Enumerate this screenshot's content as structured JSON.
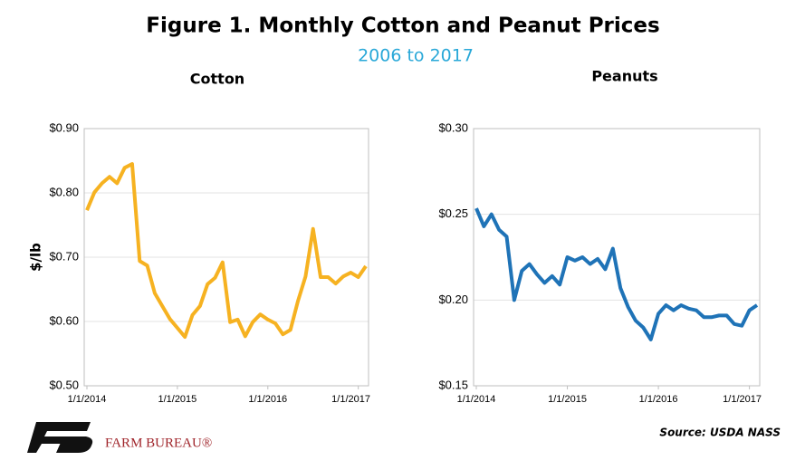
{
  "title": "Figure 1. Monthly Cotton and Peanut Prices",
  "subtitle": "2006 to 2017",
  "source": "Source: USDA NASS",
  "logo_text": "FARM BUREAU®",
  "chart_data": [
    {
      "type": "line",
      "title": "Cotton",
      "y_label": "$/lb",
      "color": "#f6b221",
      "grid": true,
      "categories": [
        "1/1/2014",
        null,
        null,
        null,
        null,
        null,
        null,
        null,
        null,
        null,
        null,
        null,
        "1/1/2015",
        null,
        null,
        null,
        null,
        null,
        null,
        null,
        null,
        null,
        null,
        null,
        "1/1/2016",
        null,
        null,
        null,
        null,
        null,
        null,
        null,
        null,
        null,
        null,
        null,
        "1/1/2017",
        null
      ],
      "values": [
        0.773,
        0.801,
        0.815,
        0.825,
        0.815,
        0.839,
        0.845,
        0.694,
        0.687,
        0.644,
        0.624,
        0.604,
        0.59,
        0.576,
        0.61,
        0.624,
        0.658,
        0.668,
        0.692,
        0.599,
        0.603,
        0.577,
        0.599,
        0.611,
        0.603,
        0.597,
        0.58,
        0.587,
        0.632,
        0.67,
        0.744,
        0.669,
        0.669,
        0.659,
        0.67,
        0.676,
        0.669,
        0.686
      ],
      "ylim": [
        0.5,
        0.9
      ],
      "yticks": [
        {
          "value": 0.5,
          "label": "$0.50"
        },
        {
          "value": 0.6,
          "label": "$0.60"
        },
        {
          "value": 0.7,
          "label": "$0.70"
        },
        {
          "value": 0.8,
          "label": "$0.80"
        },
        {
          "value": 0.9,
          "label": "$0.90"
        }
      ]
    },
    {
      "type": "line",
      "title": "Peanuts",
      "color": "#1f73b7",
      "grid": true,
      "categories": [
        "1/1/2014",
        null,
        null,
        null,
        null,
        null,
        null,
        null,
        null,
        null,
        null,
        null,
        "1/1/2015",
        null,
        null,
        null,
        null,
        null,
        null,
        null,
        null,
        null,
        null,
        null,
        "1/1/2016",
        null,
        null,
        null,
        null,
        null,
        null,
        null,
        null,
        null,
        null,
        null,
        "1/1/2017",
        null
      ],
      "values": [
        0.2535,
        0.243,
        0.25,
        0.241,
        0.237,
        0.2,
        0.217,
        0.221,
        0.215,
        0.21,
        0.214,
        0.209,
        0.225,
        0.223,
        0.225,
        0.221,
        0.224,
        0.218,
        0.23,
        0.207,
        0.196,
        0.188,
        0.184,
        0.177,
        0.192,
        0.197,
        0.194,
        0.197,
        0.195,
        0.194,
        0.19,
        0.19,
        0.191,
        0.191,
        0.186,
        0.185,
        0.194,
        0.197
      ],
      "ylim": [
        0.15,
        0.3
      ],
      "yticks": [
        {
          "value": 0.15,
          "label": "$0.15"
        },
        {
          "value": 0.2,
          "label": "$0.20"
        },
        {
          "value": 0.25,
          "label": "$0.25"
        },
        {
          "value": 0.3,
          "label": "$0.30"
        }
      ]
    }
  ]
}
